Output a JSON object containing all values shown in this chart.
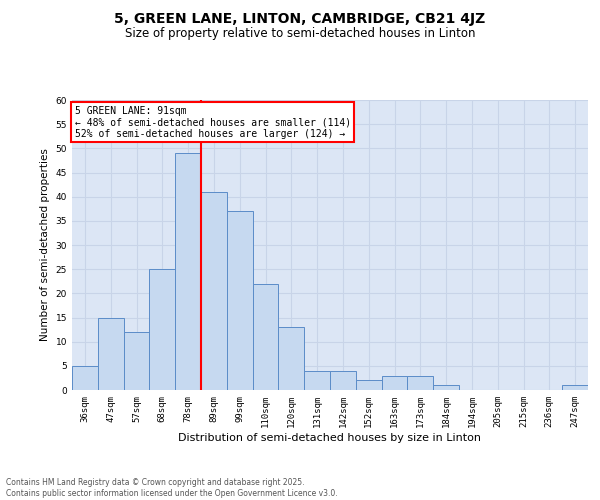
{
  "title": "5, GREEN LANE, LINTON, CAMBRIDGE, CB21 4JZ",
  "subtitle": "Size of property relative to semi-detached houses in Linton",
  "xlabel": "Distribution of semi-detached houses by size in Linton",
  "ylabel": "Number of semi-detached properties",
  "categories": [
    "36sqm",
    "47sqm",
    "57sqm",
    "68sqm",
    "78sqm",
    "89sqm",
    "99sqm",
    "110sqm",
    "120sqm",
    "131sqm",
    "142sqm",
    "152sqm",
    "163sqm",
    "173sqm",
    "184sqm",
    "194sqm",
    "205sqm",
    "215sqm",
    "236sqm",
    "247sqm"
  ],
  "values": [
    5,
    15,
    12,
    25,
    49,
    41,
    37,
    22,
    13,
    4,
    4,
    2,
    3,
    3,
    1,
    0,
    0,
    0,
    0,
    1
  ],
  "bar_color": "#c6d9f0",
  "bar_edge_color": "#5b8cc8",
  "grid_color": "#c8d4e8",
  "bg_color": "#dce6f5",
  "vline_color": "red",
  "annotation_title": "5 GREEN LANE: 91sqm",
  "annotation_line1": "← 48% of semi-detached houses are smaller (114)",
  "annotation_line2": "52% of semi-detached houses are larger (124) →",
  "annotation_box_color": "white",
  "annotation_box_edge": "red",
  "ylim": [
    0,
    60
  ],
  "yticks": [
    0,
    5,
    10,
    15,
    20,
    25,
    30,
    35,
    40,
    45,
    50,
    55,
    60
  ],
  "footer_line1": "Contains HM Land Registry data © Crown copyright and database right 2025.",
  "footer_line2": "Contains public sector information licensed under the Open Government Licence v3.0.",
  "title_fontsize": 10,
  "subtitle_fontsize": 8.5,
  "tick_fontsize": 6.5,
  "ylabel_fontsize": 7.5,
  "xlabel_fontsize": 8,
  "annotation_fontsize": 7,
  "footer_fontsize": 5.5
}
